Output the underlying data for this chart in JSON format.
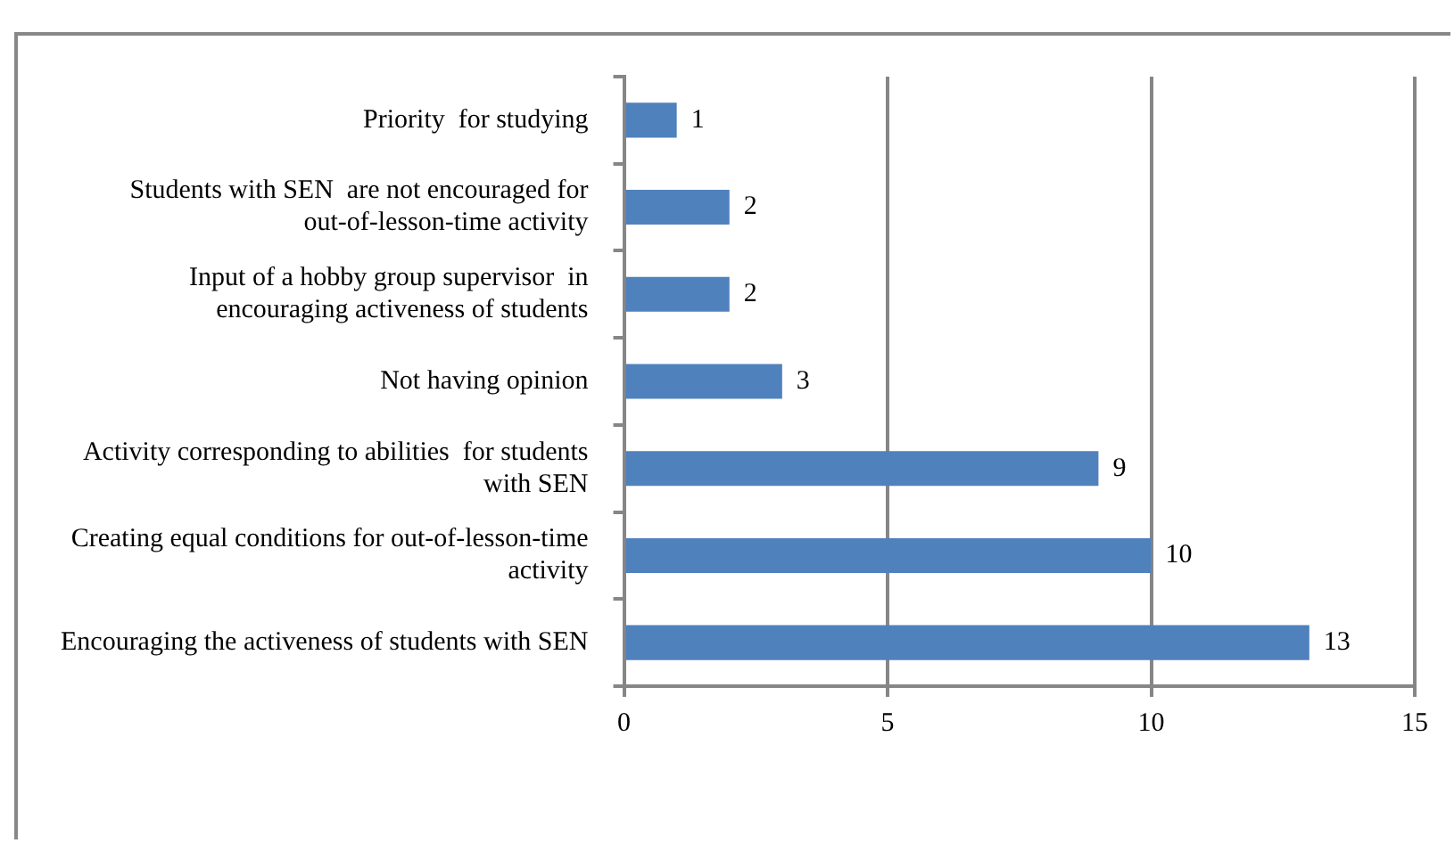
{
  "chart_data": {
    "type": "bar",
    "orientation": "horizontal",
    "categories": [
      "Priority  for studying",
      "Students with SEN  are not encouraged for out-of-lesson-time activity",
      "Input of a hobby group supervisor  in encouraging activeness of students",
      "Not having opinion",
      "Activity corresponding to abilities  for students with SEN",
      "Creating equal conditions for out-of-lesson-time activity",
      "Encouraging the activeness of students with SEN"
    ],
    "values": [
      1,
      2,
      2,
      3,
      9,
      10,
      13
    ],
    "color": "#4f81bd",
    "xlim": [
      0,
      15
    ],
    "xticks": [
      0,
      5,
      10,
      15
    ],
    "grid": "x",
    "data_labels": true
  }
}
